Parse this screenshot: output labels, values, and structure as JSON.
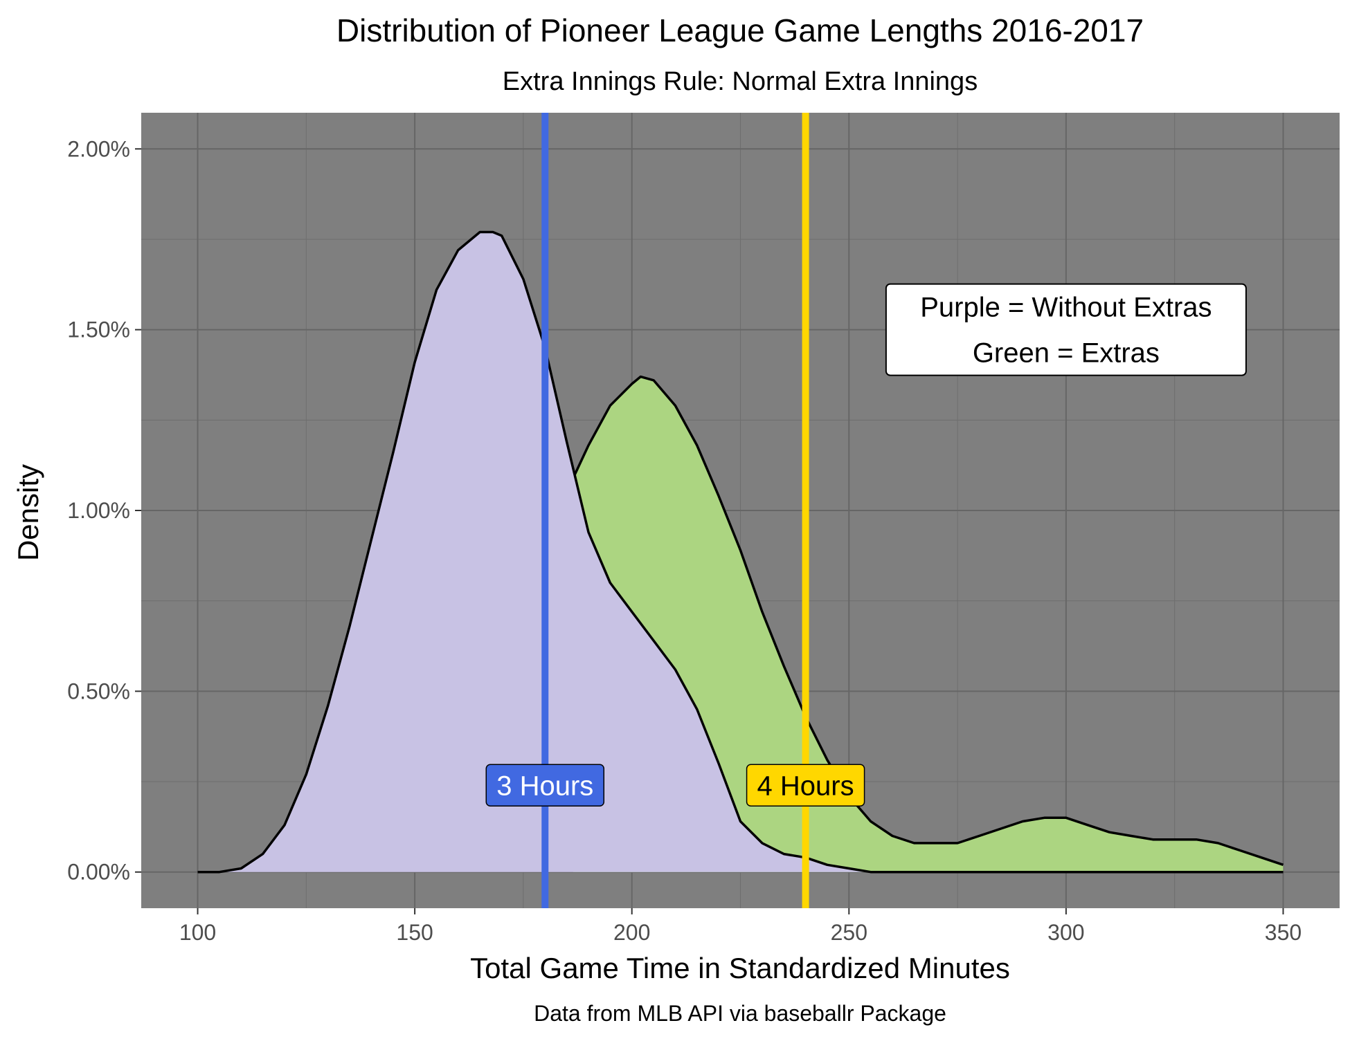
{
  "chart_data": {
    "type": "area",
    "title": "Distribution of Pioneer League Game Lengths 2016-2017",
    "subtitle": "Extra Innings Rule: Normal Extra Innings",
    "caption": "Data from MLB API via baseballr Package",
    "xlabel": "Total Game Time in Standardized Minutes",
    "ylabel": "Density",
    "xlim": [
      87,
      363
    ],
    "ylim": [
      -0.001,
      0.021
    ],
    "x_ticks": [
      100,
      150,
      200,
      250,
      300,
      350
    ],
    "x_tick_labels": [
      "100",
      "150",
      "200",
      "250",
      "300",
      "350"
    ],
    "y_ticks": [
      0,
      0.005,
      0.01,
      0.015,
      0.02
    ],
    "y_tick_labels": [
      "0.00%",
      "0.50%",
      "1.00%",
      "1.50%",
      "2.00%"
    ],
    "grid": true,
    "panel_color": "#7f7f7f",
    "series": [
      {
        "color": "#ACD581",
        "x": [
          186.5,
          190,
          195,
          200,
          202,
          205,
          210,
          215,
          220,
          225,
          230,
          235,
          240,
          245,
          250,
          255,
          260,
          265,
          270,
          275,
          280,
          285,
          290,
          295,
          300,
          305,
          310,
          315,
          320,
          325,
          330,
          335,
          340,
          345,
          350
        ],
        "y": [
          0.0109,
          0.0118,
          0.0129,
          0.0135,
          0.0137,
          0.0136,
          0.0129,
          0.0118,
          0.0104,
          0.0089,
          0.0072,
          0.0057,
          0.0043,
          0.0031,
          0.0021,
          0.0014,
          0.001,
          0.0008,
          0.0008,
          0.0008,
          0.001,
          0.0012,
          0.0014,
          0.0015,
          0.0015,
          0.0013,
          0.0011,
          0.001,
          0.0009,
          0.0009,
          0.0009,
          0.0008,
          0.0006,
          0.0004,
          0.0002
        ]
      },
      {
        "color": "#C8C2E4",
        "x": [
          100,
          105,
          110,
          115,
          120,
          125,
          130,
          135,
          140,
          145,
          150,
          155,
          160,
          165,
          168,
          170,
          175,
          180,
          185,
          190,
          195,
          200,
          205,
          210,
          215,
          220,
          225,
          230,
          235,
          240,
          245,
          250,
          255,
          260,
          270,
          280,
          290,
          300,
          310,
          320,
          330,
          340,
          350
        ],
        "y": [
          0.0,
          0.0,
          0.0001,
          0.0005,
          0.0013,
          0.0027,
          0.0046,
          0.0068,
          0.0092,
          0.0116,
          0.0141,
          0.0161,
          0.0172,
          0.0177,
          0.0177,
          0.0176,
          0.0164,
          0.0145,
          0.0119,
          0.0094,
          0.008,
          0.0072,
          0.0064,
          0.0056,
          0.0045,
          0.003,
          0.0014,
          0.0008,
          0.0005,
          0.0004,
          0.0002,
          0.0001,
          0.0,
          0.0,
          0.0,
          0.0,
          0.0,
          0.0,
          0.0,
          0.0,
          0.0,
          0.0,
          0.0
        ]
      }
    ],
    "vlines": [
      {
        "x": 180,
        "color": "#4169E1",
        "label": "3 Hours",
        "label_y": 0.0024,
        "label_color": "#ffffff"
      },
      {
        "x": 240,
        "color": "#FFD700",
        "label": "4 Hours",
        "label_y": 0.0024,
        "label_color": "#000000"
      }
    ],
    "annotation": {
      "lines": [
        "Purple = Without Extras",
        "Green = Extras"
      ],
      "x": 300,
      "y": 0.015
    }
  }
}
